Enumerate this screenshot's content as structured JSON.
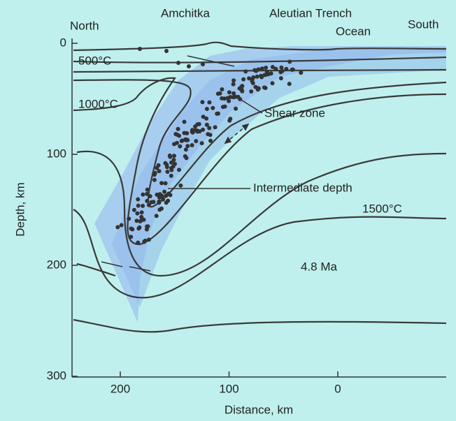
{
  "labels": {
    "north": "North",
    "amchitka": "Amchitka",
    "trench": "Aleutian Trench",
    "ocean": "Ocean",
    "south": "South",
    "iso500": "500°C",
    "iso1000": "1000°C",
    "shear": "Shear zone",
    "intermediate": "Intermediate depth",
    "iso1500": "1500°C",
    "age": "4.8 Ma"
  },
  "axes": {
    "y_label": "Depth, km",
    "x_label": "Distance, km",
    "yticks": [
      0,
      100,
      200,
      300
    ],
    "xticks": [
      200,
      100,
      0
    ]
  }
}
